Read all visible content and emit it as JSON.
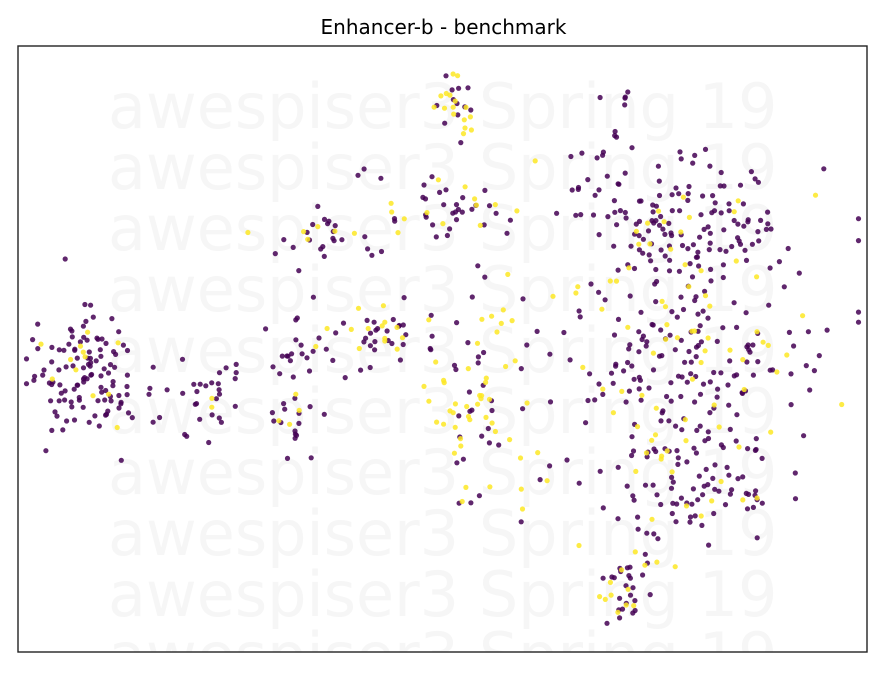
{
  "chart_data": {
    "type": "scatter",
    "title": "Enhancer-b - benchmark",
    "xlabel": "",
    "ylabel": "",
    "axes_ticks": false,
    "grid": false,
    "legend": "none",
    "xlim": [
      0,
      100
    ],
    "ylim": [
      0,
      100
    ],
    "watermark": "awespiser3 Spring 19",
    "colors": {
      "class0": "#440154",
      "class1": "#fde725"
    },
    "clusters": [
      {
        "cx": 8.5,
        "cy": 46,
        "sx": 3.5,
        "sy": 5.5,
        "n": 130,
        "class1_frac": 0.12
      },
      {
        "cx": 22,
        "cy": 40,
        "sx": 2.2,
        "sy": 4.0,
        "n": 28,
        "class1_frac": 0.08
      },
      {
        "cx": 35,
        "cy": 68,
        "sx": 3.0,
        "sy": 2.2,
        "n": 28,
        "class1_frac": 0.15
      },
      {
        "cx": 34,
        "cy": 50,
        "sx": 2.5,
        "sy": 3.5,
        "n": 26,
        "class1_frac": 0.05
      },
      {
        "cx": 33,
        "cy": 39,
        "sx": 1.8,
        "sy": 3.0,
        "n": 20,
        "class1_frac": 0.12
      },
      {
        "cx": 44,
        "cy": 53,
        "sx": 2.5,
        "sy": 3.0,
        "n": 38,
        "class1_frac": 0.25
      },
      {
        "cx": 51,
        "cy": 90,
        "sx": 1.4,
        "sy": 3.5,
        "n": 28,
        "class1_frac": 0.3
      },
      {
        "cx": 51,
        "cy": 73,
        "sx": 4.5,
        "sy": 3.0,
        "n": 48,
        "class1_frac": 0.35
      },
      {
        "cx": 53,
        "cy": 36,
        "sx": 3.0,
        "sy": 5.5,
        "n": 48,
        "class1_frac": 0.6
      },
      {
        "cx": 56,
        "cy": 47,
        "sx": 5.0,
        "sy": 8.0,
        "n": 40,
        "class1_frac": 0.5
      },
      {
        "cx": 78,
        "cy": 70,
        "sx": 7.0,
        "sy": 7.5,
        "n": 190,
        "class1_frac": 0.2
      },
      {
        "cx": 79,
        "cy": 45,
        "sx": 7.5,
        "sy": 7.5,
        "n": 180,
        "class1_frac": 0.22
      },
      {
        "cx": 79,
        "cy": 27,
        "sx": 6.0,
        "sy": 5.0,
        "n": 90,
        "class1_frac": 0.2
      },
      {
        "cx": 71.5,
        "cy": 10,
        "sx": 2.5,
        "sy": 3.5,
        "n": 38,
        "class1_frac": 0.4
      },
      {
        "cx": 71,
        "cy": 90,
        "sx": 1.0,
        "sy": 2.5,
        "n": 8,
        "class1_frac": 0.0
      }
    ]
  }
}
